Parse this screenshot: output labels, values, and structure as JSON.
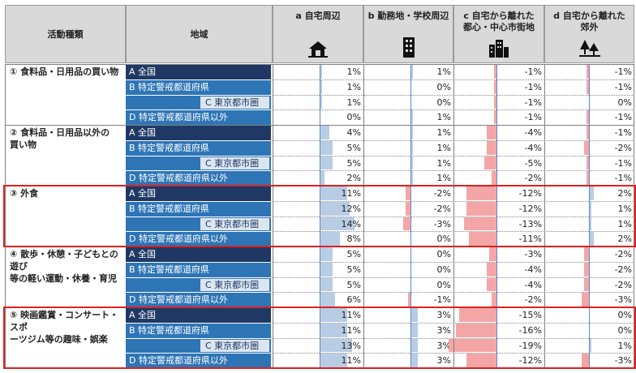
{
  "headers": {
    "activity": "活動種類",
    "region": "地域",
    "columns": [
      {
        "label": "a 自宅周辺",
        "icon": "house-icon"
      },
      {
        "label": "b 勤務地・学校周辺",
        "icon": "office-building-icon"
      },
      {
        "label": "c 自宅から離れた\n都心・中心市街地",
        "icon": "city-buildings-icon"
      },
      {
        "label": "d 自宅から離れた\n郊外",
        "icon": "trees-icon"
      }
    ]
  },
  "region_labels": [
    "A 全国",
    "B 特定警戒都道府県",
    "C 東京都市圏",
    "D 特定警戒都道府県以外"
  ],
  "colors": {
    "positive": "#b8cce4",
    "negative": "#f4a6a6",
    "region_dark": "#1f3864",
    "region_mid": "#2e75b6",
    "region_tokyo": "#ffffff",
    "highlight": "#e02020"
  },
  "chart_data": {
    "type": "table",
    "highlighted_groups": [
      2,
      4
    ],
    "groups": [
      {
        "activity": "① 食料品・日用品の買い物",
        "rows": [
          [
            "1%",
            "1%",
            "-1%",
            "-1%"
          ],
          [
            "1%",
            "0%",
            "-1%",
            "-1%"
          ],
          [
            "1%",
            "0%",
            "-1%",
            "0%"
          ],
          [
            "0%",
            "1%",
            "-1%",
            "-1%"
          ]
        ],
        "values": [
          [
            1,
            1,
            -1,
            -1
          ],
          [
            1,
            0,
            -1,
            -1
          ],
          [
            1,
            0,
            -1,
            0
          ],
          [
            0,
            1,
            -1,
            -1
          ]
        ]
      },
      {
        "activity": "② 食料品・日用品以外の\n買い物",
        "rows": [
          [
            "4%",
            "1%",
            "-4%",
            "-1%"
          ],
          [
            "5%",
            "1%",
            "-4%",
            "-2%"
          ],
          [
            "5%",
            "1%",
            "-5%",
            "-1%"
          ],
          [
            "2%",
            "1%",
            "-2%",
            "-1%"
          ]
        ],
        "values": [
          [
            4,
            1,
            -4,
            -1
          ],
          [
            5,
            1,
            -4,
            -2
          ],
          [
            5,
            1,
            -5,
            -1
          ],
          [
            2,
            1,
            -2,
            -1
          ]
        ]
      },
      {
        "activity": "③ 外食",
        "rows": [
          [
            "11%",
            "-2%",
            "-12%",
            "2%"
          ],
          [
            "12%",
            "-2%",
            "-12%",
            "1%"
          ],
          [
            "14%",
            "-3%",
            "-13%",
            "1%"
          ],
          [
            "8%",
            "0%",
            "-11%",
            "2%"
          ]
        ],
        "values": [
          [
            11,
            -2,
            -12,
            2
          ],
          [
            12,
            -2,
            -12,
            1
          ],
          [
            14,
            -3,
            -13,
            1
          ],
          [
            8,
            0,
            -11,
            2
          ]
        ]
      },
      {
        "activity": "④ 散歩・休憩・子どもとの遊び\n等の軽い運動・休養・育児",
        "rows": [
          [
            "5%",
            "0%",
            "-3%",
            "-2%"
          ],
          [
            "5%",
            "0%",
            "-4%",
            "-2%"
          ],
          [
            "5%",
            "0%",
            "-4%",
            "-2%"
          ],
          [
            "6%",
            "-1%",
            "-2%",
            "-3%"
          ]
        ],
        "values": [
          [
            5,
            0,
            -3,
            -2
          ],
          [
            5,
            0,
            -4,
            -2
          ],
          [
            5,
            0,
            -4,
            -2
          ],
          [
            6,
            -1,
            -2,
            -3
          ]
        ]
      },
      {
        "activity": "⑤ 映画鑑賞・コンサート・スポ\nーツジム等の趣味・娯楽",
        "rows": [
          [
            "11%",
            "3%",
            "-15%",
            "0%"
          ],
          [
            "11%",
            "3%",
            "-16%",
            "0%"
          ],
          [
            "13%",
            "3%",
            "-19%",
            "1%"
          ],
          [
            "11%",
            "3%",
            "-12%",
            "-3%"
          ]
        ],
        "values": [
          [
            11,
            3,
            -15,
            0
          ],
          [
            11,
            3,
            -16,
            0
          ],
          [
            13,
            3,
            -19,
            1
          ],
          [
            11,
            3,
            -12,
            -3
          ]
        ]
      }
    ]
  }
}
